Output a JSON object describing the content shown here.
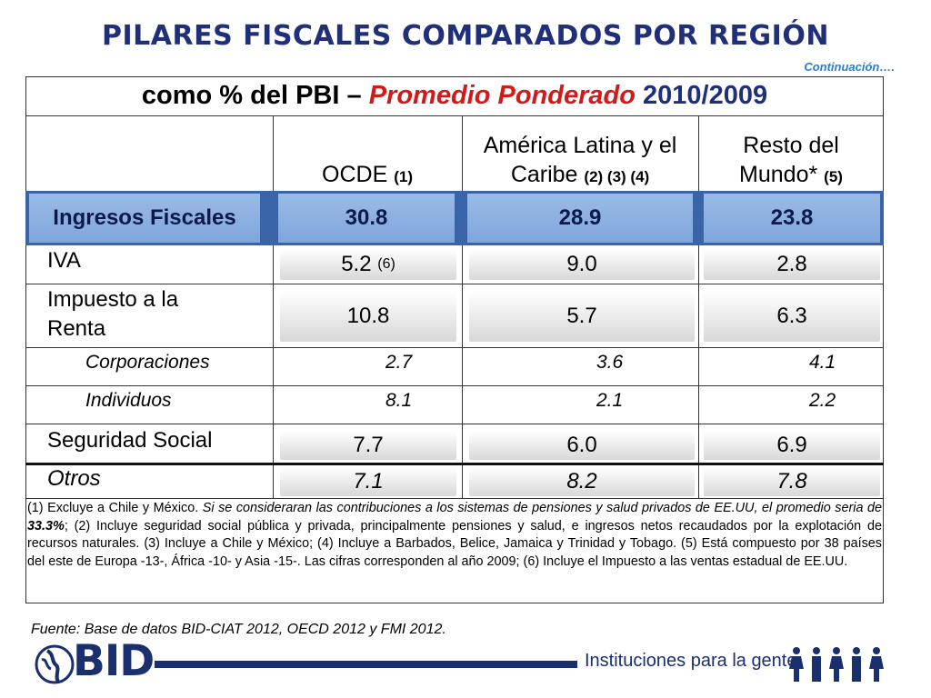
{
  "title": "PILARES FISCALES COMPARADOS POR REGIÓN",
  "continuation": "Continuación….",
  "table": {
    "heading_pre": "como % del PBI – ",
    "heading_accent": "Promedio Ponderado",
    "heading_year": " 2010/2009",
    "columns": [
      {
        "label": "OCDE ",
        "note": "(1)"
      },
      {
        "label_line1": "América Latina y el",
        "label_line2": "Caribe ",
        "note": "(2) (3) (4)"
      },
      {
        "label_line1": "Resto del",
        "label_line2": "Mundo* ",
        "note": "(5)"
      }
    ],
    "rows": {
      "ingresos": {
        "label": "Ingresos Fiscales",
        "values": [
          "30.8",
          "28.9",
          "23.8"
        ]
      },
      "iva": {
        "label": "IVA",
        "values": [
          "5.2",
          "9.0",
          "2.8"
        ],
        "note": "(6)"
      },
      "renta": {
        "label_line1": "Impuesto a la",
        "label_line2": "Renta",
        "values": [
          "10.8",
          "5.7",
          "6.3"
        ]
      },
      "corporaciones": {
        "label": "Corporaciones",
        "values": [
          "2.7",
          "3.6",
          "4.1"
        ]
      },
      "individuos": {
        "label": "Individuos",
        "values": [
          "8.1",
          "2.1",
          "2.2"
        ]
      },
      "seguridad": {
        "label": "Seguridad Social",
        "values": [
          "7.7",
          "6.0",
          "6.9"
        ]
      },
      "otros": {
        "label": "Otros",
        "values": [
          "7.1",
          "8.2",
          "7.8"
        ]
      }
    }
  },
  "notes": {
    "p1": "(1) Excluye a Chile y México. ",
    "p2": "Si se consideraran las contribuciones a los sistemas de pensiones y salud privados de EE.UU, el promedio seria de ",
    "p3": "33.3%",
    "p4": "; (2) Incluye seguridad social pública y privada, principalmente pensiones y salud, e ingresos netos recaudados por  la explotación de recursos naturales.  (3) Incluye a Chile y México; (4) Incluye a Barbados, Belice, Jamaica y Trinidad y Tobago.  (5) Está compuesto por 38 países del este de Europa -13-, África -10- y Asia -15-. Las cifras corresponden al año 2009; (6) Incluye el Impuesto a las ventas estadual de EE.UU."
  },
  "source": "Fuente: Base de datos BID-CIAT 2012, OECD 2012 y FMI 2012.",
  "footer": {
    "logo_text": "BID",
    "tagline": "Instituciones para la gente"
  },
  "colors": {
    "title": "#1f2f7a",
    "accent_red": "#d11a1a",
    "highlight_blue": "#7fa6de",
    "link_blue": "#2a7fd4"
  }
}
